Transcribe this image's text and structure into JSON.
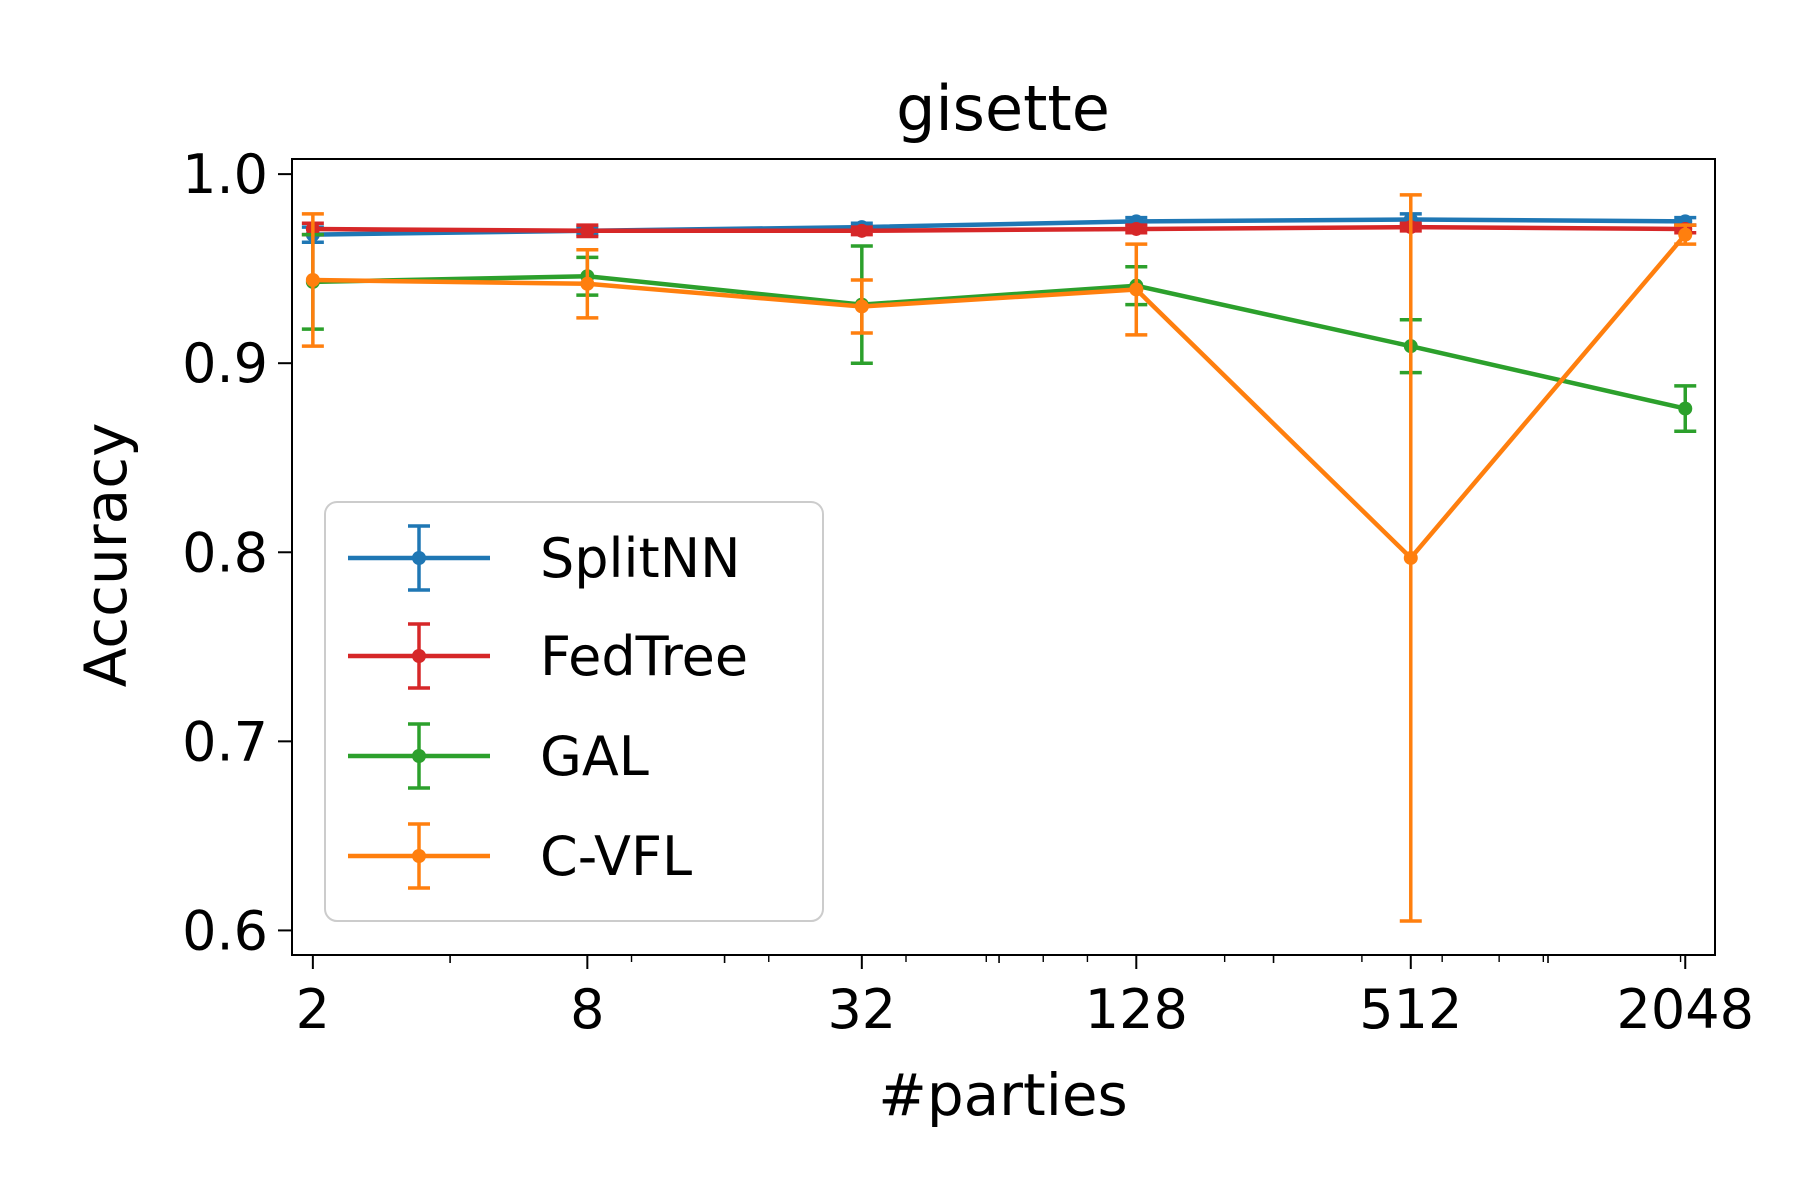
{
  "chart_data": {
    "type": "line",
    "title": "gisette",
    "xlabel": "#parties",
    "ylabel": "Accuracy",
    "x_scale": "log2",
    "x": [
      2,
      8,
      32,
      128,
      512,
      2048
    ],
    "x_tick_labels": [
      "2",
      "8",
      "32",
      "128",
      "512",
      "2048"
    ],
    "y_ticks": [
      0.6,
      0.7,
      0.8,
      0.9,
      1.0
    ],
    "y_tick_labels": [
      "0.6",
      "0.7",
      "0.8",
      "0.9",
      "1.0"
    ],
    "ylim": [
      0.587,
      1.008
    ],
    "xlim": [
      1.8,
      2380
    ],
    "grid": false,
    "legend_position": "lower-left",
    "series": [
      {
        "name": "SplitNN",
        "color": "#1f77b4",
        "y": [
          0.968,
          0.97,
          0.972,
          0.975,
          0.976,
          0.975
        ],
        "yerr": [
          0.004,
          0.002,
          0.002,
          0.002,
          0.003,
          0.002
        ]
      },
      {
        "name": "FedTree",
        "color": "#d62728",
        "y": [
          0.971,
          0.97,
          0.97,
          0.971,
          0.972,
          0.971
        ],
        "yerr": [
          0.003,
          0.003,
          0.002,
          0.002,
          0.002,
          0.002
        ]
      },
      {
        "name": "GAL",
        "color": "#2ca02c",
        "y": [
          0.943,
          0.946,
          0.931,
          0.941,
          0.909,
          0.876
        ],
        "yerr": [
          0.025,
          0.01,
          0.031,
          0.01,
          0.014,
          0.012
        ]
      },
      {
        "name": "C-VFL",
        "color": "#ff7f0e",
        "y": [
          0.944,
          0.942,
          0.93,
          0.939,
          0.797,
          0.968
        ],
        "yerr": [
          0.035,
          0.018,
          0.014,
          0.024,
          0.192,
          0.005
        ]
      }
    ]
  }
}
